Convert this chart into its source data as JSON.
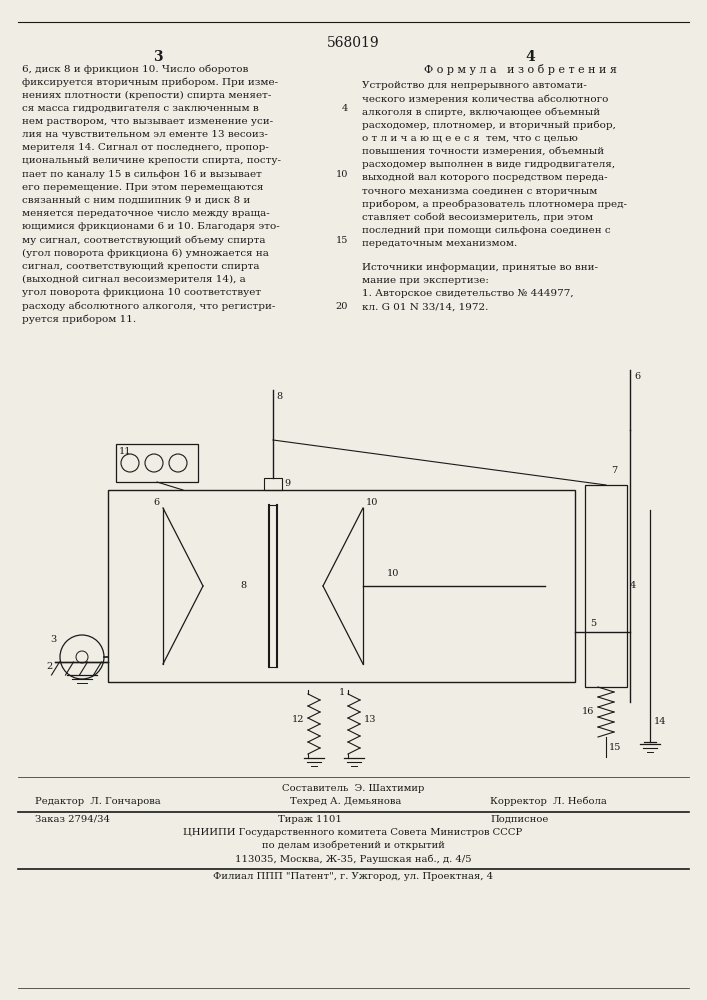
{
  "patent_number": "568019",
  "page_number_left": "3",
  "page_number_right": "4",
  "col_left_text": [
    "6, диск 8 и фрикцион 10. Число оборотов",
    "фиксируется вторичным прибором. При изме-",
    "нениях плотности (крепости) спирта меняет-",
    "ся масса гидродвигателя с заключенным в",
    "нем раствором, что вызывает изменение уси-",
    "лия на чувствительном эл ементе 13 весоиз-",
    "мерителя 14. Сигнал от последнего, пропор-",
    "циональный величине крепости спирта, посту-",
    "пает по каналу 15 в сильфон 16 и вызывает",
    "его перемещение. При этом перемещаются",
    "связанный с ним подшипник 9 и диск 8 и",
    "меняется передаточное число между враща-",
    "ющимися фрикционами 6 и 10. Благодаря это-",
    "му сигнал, соответствующий объему спирта",
    "(угол поворота фрикциона 6) умножается на",
    "сигнал, соответствующий крепости спирта",
    "(выходной сигнал весоизмерителя 14), а",
    "угол поворота фрикциона 10 соответствует",
    "расходу абсолютного алкоголя, что регистри-",
    "руется прибором 11."
  ],
  "line_numbers_left": {
    "4": 3,
    "10": 8,
    "15": 13,
    "20": 18
  },
  "formula_header": "Ф о р м у л а   и з о б р е т е н и я",
  "col_right_text": [
    "Устройство для непрерывного автомати-",
    "ческого измерения количества абсолютного",
    "алкоголя в спирте, включающее объемный",
    "расходомер, плотномер, и вторичный прибор,",
    "о т л и ч а ю щ е е с я  тем, что с целью",
    "повышения точности измерения, объемный",
    "расходомер выполнен в виде гидродвигателя,",
    "выходной вал которого посредством переда-",
    "точного механизма соединен с вторичным",
    "прибором, а преобразователь плотномера пред-",
    "ставляет собой весоизмеритель, при этом",
    "последний при помощи сильфона соединен с",
    "передаточным механизмом."
  ],
  "sources_header": "Источники информации, принятые во вни-",
  "sources_text": [
    "мание при экспертизе:",
    "1. Авторское свидетельство № 444977,",
    "кл. G 01 N 33/14, 1972."
  ],
  "footer_composer": "Составитель  Э. Шахтимир",
  "footer_editor": "Редактор  Л. Гончарова",
  "footer_techred": "Техред А. Демьянова",
  "footer_corrector": "Корректор  Л. Небола",
  "footer_order": "Заказ 2794/34",
  "footer_circulation": "Тираж 1101",
  "footer_type": "Подписное",
  "footer_tsniipi": "ЦНИИПИ Государственного комитета Совета Министров СССР",
  "footer_affairs": "по делам изобретений и открытий",
  "footer_address": "113035, Москва, Ж-35, Раушская наб., д. 4/5",
  "footer_branch": "Филиал ППП \"Патент\", г. Ужгород, ул. Проектная, 4",
  "bg_color": "#f0ede4",
  "text_color": "#1a1a1a"
}
